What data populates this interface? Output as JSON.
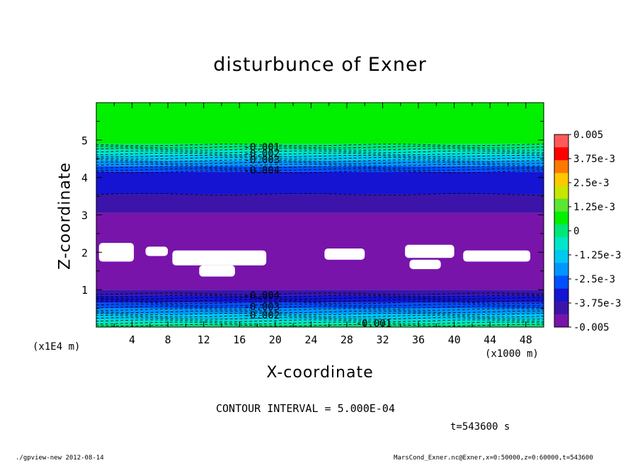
{
  "chart_data": {
    "type": "heatmap",
    "title": "disturbunce of Exner",
    "xlabel": "X-coordinate",
    "ylabel": "Z-coordinate",
    "x_unit_label": "(x1000 m)",
    "y_unit_label": "(x1E4 m)",
    "xlim": [
      0,
      50
    ],
    "ylim": [
      0,
      6
    ],
    "x_ticks": [
      4,
      8,
      12,
      16,
      20,
      24,
      28,
      32,
      36,
      40,
      44,
      48
    ],
    "y_ticks": [
      1,
      2,
      3,
      4,
      5
    ],
    "colorbar": {
      "labels": [
        "0.005",
        "3.75e-3",
        "2.5e-3",
        "1.25e-3",
        "0",
        "-1.25e-3",
        "-2.5e-3",
        "-3.75e-3",
        "-0.005"
      ],
      "colors": [
        "#ff5a5a",
        "#ff0000",
        "#ff7800",
        "#ffc800",
        "#c8e600",
        "#5ae632",
        "#00f000",
        "#00e678",
        "#00e6c8",
        "#00c8f0",
        "#0096ff",
        "#0050ff",
        "#1414d2",
        "#3c14aa",
        "#7814aa"
      ]
    },
    "bands": [
      {
        "z0": 4.9,
        "z1": 6.0,
        "value": 0,
        "color": "#00f000"
      },
      {
        "z0": 4.75,
        "z1": 4.9,
        "value": -0.0005,
        "color": "#00e678"
      },
      {
        "z0": 4.6,
        "z1": 4.75,
        "value": -0.001,
        "color": "#00e6c8"
      },
      {
        "z0": 4.45,
        "z1": 4.6,
        "value": -0.002,
        "color": "#00c8f0"
      },
      {
        "z0": 4.3,
        "z1": 4.45,
        "value": -0.003,
        "color": "#0096ff"
      },
      {
        "z0": 4.15,
        "z1": 4.3,
        "value": -0.0035,
        "color": "#0050ff"
      },
      {
        "z0": 3.55,
        "z1": 4.15,
        "value": -0.004,
        "color": "#1414d2"
      },
      {
        "z0": 3.05,
        "z1": 3.55,
        "value": -0.0045,
        "color": "#3c14aa"
      },
      {
        "z0": 1.0,
        "z1": 3.05,
        "value": -0.005,
        "color": "#7814aa"
      },
      {
        "z0": 0.85,
        "z1": 1.0,
        "value": -0.0045,
        "color": "#3c14aa"
      },
      {
        "z0": 0.65,
        "z1": 0.85,
        "value": -0.004,
        "color": "#1414d2"
      },
      {
        "z0": 0.5,
        "z1": 0.65,
        "value": -0.0035,
        "color": "#0050ff"
      },
      {
        "z0": 0.35,
        "z1": 0.5,
        "value": -0.003,
        "color": "#0096ff"
      },
      {
        "z0": 0.2,
        "z1": 0.35,
        "value": -0.002,
        "color": "#00c8f0"
      },
      {
        "z0": 0.08,
        "z1": 0.2,
        "value": -0.001,
        "color": "#00e6c8"
      },
      {
        "z0": 0.0,
        "z1": 0.08,
        "value": -0.0005,
        "color": "#00e678"
      }
    ],
    "contour_labels": [
      {
        "text": "-0.001",
        "x": 18.5,
        "z": 4.82
      },
      {
        "text": "-0.002",
        "x": 18.5,
        "z": 4.65
      },
      {
        "text": "-0.003",
        "x": 18.5,
        "z": 4.48
      },
      {
        "text": "-0.004",
        "x": 18.5,
        "z": 4.2
      },
      {
        "text": "-0.004",
        "x": 18.5,
        "z": 0.85
      },
      {
        "text": "-0.003",
        "x": 18.5,
        "z": 0.55
      },
      {
        "text": "-0.002",
        "x": 18.5,
        "z": 0.32
      },
      {
        "text": "-0.001",
        "x": 31.0,
        "z": 0.1
      }
    ],
    "undefined_patches": [
      {
        "x0": 0.3,
        "x1": 4.2,
        "z0": 1.75,
        "z1": 2.25
      },
      {
        "x0": 5.5,
        "x1": 8.0,
        "z0": 1.9,
        "z1": 2.15
      },
      {
        "x0": 8.5,
        "x1": 19.0,
        "z0": 1.65,
        "z1": 2.05
      },
      {
        "x0": 11.5,
        "x1": 15.5,
        "z0": 1.35,
        "z1": 1.65
      },
      {
        "x0": 25.5,
        "x1": 30.0,
        "z0": 1.8,
        "z1": 2.1
      },
      {
        "x0": 34.5,
        "x1": 40.0,
        "z0": 1.85,
        "z1": 2.2
      },
      {
        "x0": 35.0,
        "x1": 38.5,
        "z0": 1.55,
        "z1": 1.8
      },
      {
        "x0": 41.0,
        "x1": 48.5,
        "z0": 1.75,
        "z1": 2.05
      }
    ]
  },
  "contour_interval": "CONTOUR INTERVAL = 5.000E-04",
  "time_label": "t=543600 s",
  "footer_left": "./gpview-new  2012-08-14",
  "footer_right": "MarsCond_Exner.nc@Exner,x=0:50000,z=0:60000,t=543600"
}
